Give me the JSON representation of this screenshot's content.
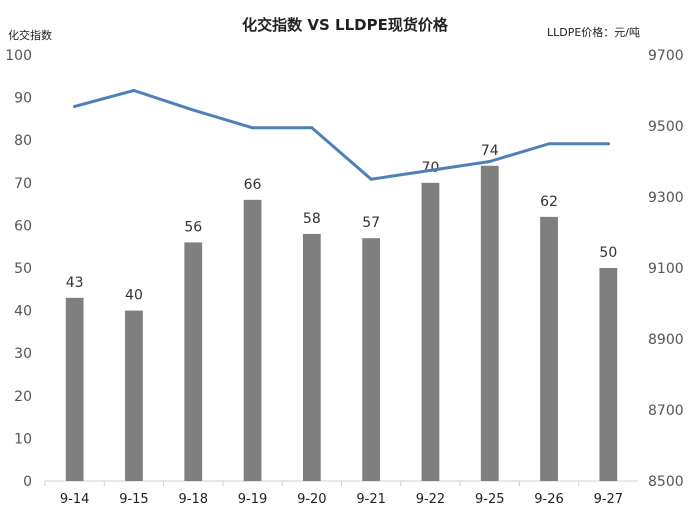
{
  "chart_data": {
    "type": "bar+line",
    "title": "化交指数 VS LLDPE现货价格",
    "y_left_label": "化交指数",
    "y_right_label": "LLDPE价格：元/吨",
    "categories": [
      "9-14",
      "9-15",
      "9-18",
      "9-19",
      "9-20",
      "9-21",
      "9-22",
      "9-25",
      "9-26",
      "9-27"
    ],
    "ylim_left": [
      0,
      100
    ],
    "yticks_left": [
      0,
      10,
      20,
      30,
      40,
      50,
      60,
      70,
      80,
      90,
      100
    ],
    "ylim_right": [
      8500,
      9700
    ],
    "yticks_right": [
      8500,
      8700,
      8900,
      9100,
      9300,
      9500,
      9700
    ],
    "series": [
      {
        "type": "bar",
        "axis": "left",
        "color": "#7f7f7f",
        "values": [
          43,
          40,
          56,
          66,
          58,
          57,
          70,
          74,
          62,
          50
        ]
      },
      {
        "type": "line",
        "axis": "right",
        "color": "#4f7fb8",
        "values": [
          9555,
          9600,
          9545,
          9495,
          9495,
          9350,
          9375,
          9400,
          9450,
          9450
        ]
      }
    ],
    "grid": false,
    "legend": "none"
  }
}
